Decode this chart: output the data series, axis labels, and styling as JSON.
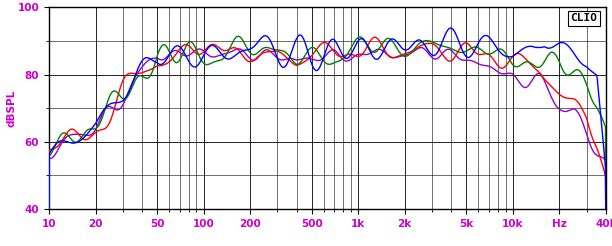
{
  "title": "",
  "ylabel": "dBSPL",
  "clio_label": "CLIO",
  "xmin": 10,
  "xmax": 40000,
  "ymin": 40,
  "ymax": 100,
  "yticks": [
    40,
    60,
    80,
    100
  ],
  "xtick_labels": [
    "10",
    "20",
    "50",
    "100",
    "200",
    "500",
    "1k",
    "2k",
    "5k",
    "10k",
    "Hz",
    "40k"
  ],
  "xtick_freqs": [
    10,
    20,
    50,
    100,
    200,
    500,
    1000,
    2000,
    5000,
    10000,
    20000,
    40000
  ],
  "background_color": "#ffffff",
  "plot_bg_color": "#ffffff",
  "grid_color": "#000000",
  "colors": {
    "0deg": "#0000ff",
    "15deg": "#008000",
    "30deg": "#ff0000",
    "45deg": "#9400d3"
  },
  "linewidth": 1.0
}
